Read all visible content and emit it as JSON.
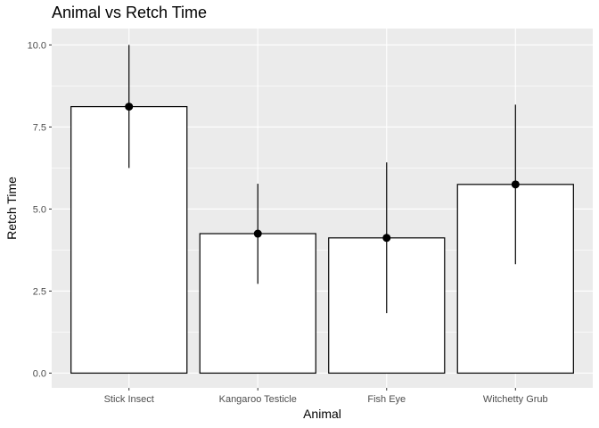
{
  "chart_data": {
    "type": "bar",
    "title": "Animal vs Retch Time",
    "xlabel": "Animal",
    "ylabel": "Retch Time",
    "categories": [
      "Stick Insect",
      "Kangaroo Testicle",
      "Fish Eye",
      "Witchetty Grub"
    ],
    "values": [
      8.12,
      4.25,
      4.12,
      5.75
    ],
    "error_low": [
      6.25,
      2.72,
      1.83,
      3.32
    ],
    "error_high": [
      10.0,
      5.77,
      6.42,
      8.18
    ],
    "ylim": [
      -0.45,
      10.5
    ],
    "yticks": [
      0.0,
      2.5,
      5.0,
      7.5,
      10.0
    ],
    "ytick_labels": [
      "0.0",
      "2.5",
      "5.0",
      "7.5",
      "10.0"
    ],
    "grid": true,
    "colors": {
      "panel_bg": "#ebebeb",
      "grid_major": "#ffffff",
      "bar_fill": "#ffffff",
      "bar_stroke": "#000000",
      "point": "#000000",
      "tick": "#333333"
    }
  }
}
